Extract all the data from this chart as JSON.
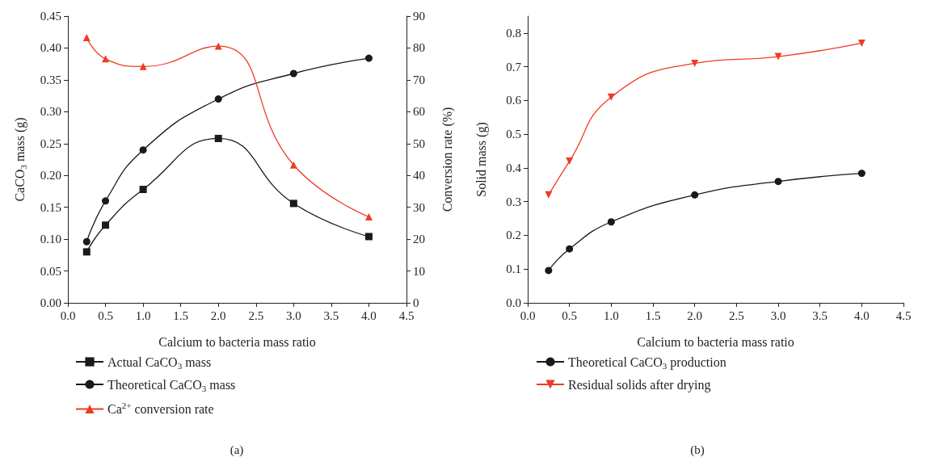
{
  "chart_data": [
    {
      "type": "line",
      "xlabel": "Calcium to bacteria mass ratio",
      "ylabel": "CaCO$_{3}$ mass (g)",
      "y2label": "Conversion rate (%)",
      "x": [
        0.25,
        0.5,
        1,
        2,
        3,
        4
      ],
      "series": [
        {
          "name": "Actual CaCO$_{3}$ mass",
          "color": "#1a1a1a",
          "marker": "square",
          "values": [
            0.08,
            0.122,
            0.178,
            0.258,
            0.156,
            0.104
          ]
        },
        {
          "name": "Theoretical CaCO$_{3}$ mass",
          "color": "#1a1a1a",
          "marker": "circle",
          "values": [
            0.096,
            0.16,
            0.24,
            0.32,
            0.36,
            0.384
          ]
        },
        {
          "name": "Ca$^{2+}$ conversion rate",
          "color": "#ee3b24",
          "marker": "triangle",
          "axis": "y2",
          "values": [
            83.3,
            76.6,
            74.2,
            80.6,
            43.3,
            27
          ]
        }
      ],
      "xlim": [
        0,
        4.5
      ],
      "xticks": [
        {
          "value": 0,
          "label": "0.0"
        },
        0.5,
        {
          "value": 1,
          "label": "1.0"
        },
        1.5,
        {
          "value": 2,
          "label": "2.0"
        },
        2.5,
        {
          "value": 3,
          "label": "3.0"
        },
        3.5,
        {
          "value": 4,
          "label": "4.0"
        },
        4.5
      ],
      "ylim": [
        0,
        0.45
      ],
      "yticks": [
        {
          "value": 0,
          "label": "0.00"
        },
        0.05,
        {
          "value": 0.1,
          "label": "0.10"
        },
        0.15,
        {
          "value": 0.2,
          "label": "0.20"
        },
        0.25,
        {
          "value": 0.3,
          "label": "0.30"
        },
        0.35,
        {
          "value": 0.4,
          "label": "0.40"
        },
        0.45
      ],
      "y2lim": [
        0,
        90
      ],
      "y2ticks": [
        0,
        10,
        20,
        30,
        40,
        50,
        60,
        70,
        80,
        90
      ],
      "legend": "bottom left",
      "annotations": [
        "(a)"
      ]
    },
    {
      "type": "line",
      "xlabel": "Calcium to bacteria mass ratio",
      "ylabel": "Solid mass (g)",
      "x": [
        0.25,
        0.5,
        1,
        2,
        3,
        4
      ],
      "series": [
        {
          "name": "Theoretical CaCO$_{3}$ production",
          "color": "#1a1a1a",
          "marker": "circle",
          "values": [
            0.096,
            0.16,
            0.24,
            0.32,
            0.36,
            0.384
          ]
        },
        {
          "name": "Residual solids after drying",
          "color": "#ee3b24",
          "marker": "triangle-down",
          "values": [
            0.32,
            0.42,
            0.61,
            0.71,
            0.73,
            0.77
          ]
        }
      ],
      "xlim": [
        0,
        4.5
      ],
      "xticks": [
        {
          "value": 0,
          "label": "0.0"
        },
        0.5,
        {
          "value": 1,
          "label": "1.0"
        },
        1.5,
        {
          "value": 2,
          "label": "2.0"
        },
        2.5,
        {
          "value": 3,
          "label": "3.0"
        },
        3.5,
        {
          "value": 4,
          "label": "4.0"
        },
        4.5
      ],
      "ylim": [
        0,
        0.85
      ],
      "yticks": [
        {
          "value": 0,
          "label": "0.0"
        },
        0.1,
        0.2,
        0.3,
        0.4,
        0.5,
        0.6,
        0.7,
        0.8
      ],
      "legend": "bottom left",
      "annotations": [
        "(b)"
      ]
    }
  ]
}
